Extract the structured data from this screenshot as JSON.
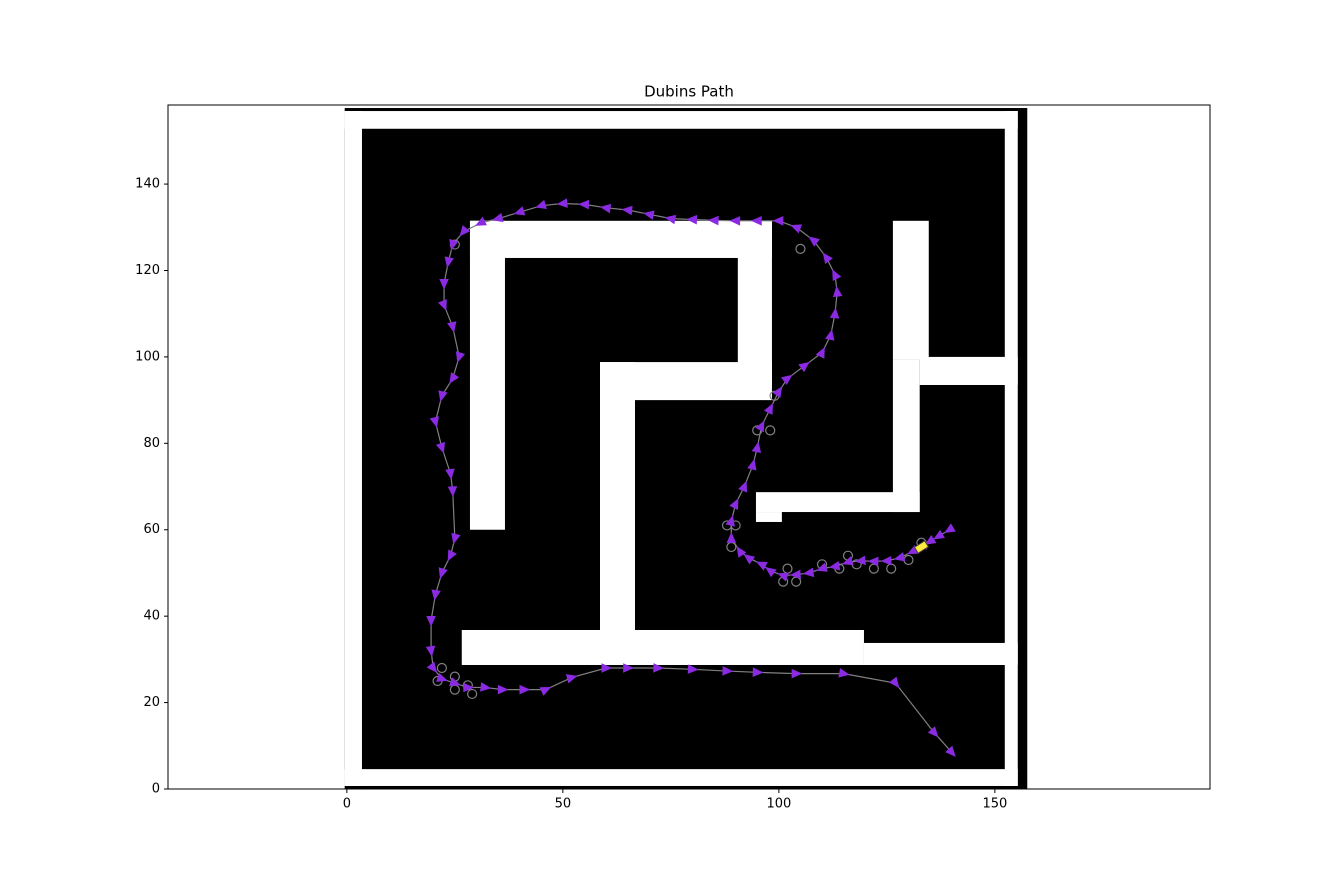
{
  "chart_data": {
    "type": "path",
    "title": "Dubins Path",
    "xlim": [
      -41.4,
      199.8
    ],
    "ylim": [
      0,
      158.3
    ],
    "xticks": [
      0,
      50,
      100,
      150
    ],
    "yticks": [
      0,
      20,
      40,
      60,
      80,
      100,
      120,
      140
    ],
    "map": {
      "free_color": "#000000",
      "wall_color": "#ffffff",
      "free": {
        "x": [
          -0.5,
          157.5
        ],
        "y": [
          0,
          157.6
        ]
      },
      "walls": [
        {
          "x": [
            -0.5,
            155.3
          ],
          "y": [
            152.8,
            156.9
          ]
        },
        {
          "x": [
            -0.5,
            3.5
          ],
          "y": [
            0.7,
            156.9
          ]
        },
        {
          "x": [
            -0.5,
            155.3
          ],
          "y": [
            0.7,
            4.6
          ]
        },
        {
          "x": [
            152.3,
            155.3
          ],
          "y": [
            0.7,
            156.9
          ]
        },
        {
          "x": [
            28.5,
            98.4
          ],
          "y": [
            122.9,
            131.5
          ]
        },
        {
          "x": [
            28.5,
            36.6
          ],
          "y": [
            60.0,
            131.5
          ]
        },
        {
          "x": [
            90.5,
            98.4
          ],
          "y": [
            93.5,
            131.5
          ]
        },
        {
          "x": [
            58.6,
            98.4
          ],
          "y": [
            90.0,
            98.8
          ]
        },
        {
          "x": [
            58.6,
            66.7
          ],
          "y": [
            28.7,
            98.8
          ]
        },
        {
          "x": [
            26.6,
            119.7
          ],
          "y": [
            28.7,
            36.8
          ]
        },
        {
          "x": [
            119.7,
            155.3
          ],
          "y": [
            28.7,
            33.8
          ]
        },
        {
          "x": [
            126.4,
            134.7
          ],
          "y": [
            99.3,
            131.5
          ]
        },
        {
          "x": [
            126.4,
            132.6
          ],
          "y": [
            64.1,
            99.3
          ]
        },
        {
          "x": [
            132.6,
            155.3
          ],
          "y": [
            93.5,
            100.0
          ]
        },
        {
          "x": [
            94.7,
            132.6
          ],
          "y": [
            64.1,
            68.7
          ]
        },
        {
          "x": [
            94.7,
            100.7
          ],
          "y": [
            61.8,
            64.1
          ]
        }
      ]
    },
    "path": {
      "line_color": "#808080",
      "arrow_color": "#8a2be2",
      "x": [
        139.5,
        137,
        135,
        133,
        131,
        128,
        125,
        122,
        119,
        116,
        113,
        110,
        107,
        104,
        101,
        98,
        96,
        93,
        91,
        89,
        89,
        90,
        92,
        94,
        95,
        96,
        98,
        100,
        102,
        106,
        110,
        112,
        113,
        113.5,
        113,
        111,
        108,
        104,
        100,
        95,
        90,
        85,
        80,
        75,
        70,
        65,
        60,
        55,
        50,
        45,
        40,
        35,
        31,
        27,
        24.5,
        23.5,
        22.5,
        22.5,
        24.5,
        26,
        24.5,
        22,
        20.5,
        22,
        24,
        24.5,
        25,
        24,
        22,
        20.5,
        19.5,
        19.5,
        20,
        22,
        25,
        28,
        32,
        36,
        41,
        46,
        52,
        60,
        65,
        72,
        80,
        88,
        95,
        104,
        115,
        127,
        136,
        140
      ],
      "y": [
        60,
        58.5,
        57.3,
        56,
        55,
        53.5,
        52.8,
        52.7,
        52.8,
        52.5,
        51.5,
        51,
        50,
        49.6,
        49.4,
        50.5,
        52,
        53.5,
        55,
        58,
        62,
        66,
        70,
        75,
        79,
        84,
        88,
        92,
        95,
        98,
        101,
        105,
        110,
        115,
        119,
        123,
        127,
        130,
        131.5,
        131.5,
        131.5,
        131.6,
        131.8,
        132,
        133,
        134,
        134.5,
        135.3,
        135.5,
        135,
        133.5,
        132,
        131,
        129,
        126,
        122,
        117,
        112,
        107,
        100,
        95,
        91,
        85,
        79,
        73,
        69,
        58,
        54,
        50,
        45,
        39,
        32,
        28,
        25.5,
        24.5,
        23.5,
        23.5,
        23,
        23,
        23,
        25.8,
        28,
        28,
        28,
        27.7,
        27.3,
        27,
        26.7,
        26.7,
        24.5,
        13,
        8.5
      ]
    },
    "samples": {
      "color": "#808080",
      "x": [
        25,
        105,
        99,
        95,
        98,
        88,
        90,
        89,
        101,
        102,
        104,
        110,
        114,
        116,
        118,
        122,
        126,
        130,
        133,
        22,
        21,
        25,
        25,
        28,
        29
      ],
      "y": [
        126,
        125,
        91,
        83,
        83,
        61,
        61,
        56,
        48,
        51,
        48,
        52,
        51,
        54,
        52,
        51,
        51,
        53,
        57,
        28,
        25,
        26,
        23,
        24,
        22
      ]
    },
    "vehicle": {
      "x": 133,
      "y": 56,
      "heading": 32,
      "color": "#ffeb3b"
    }
  }
}
